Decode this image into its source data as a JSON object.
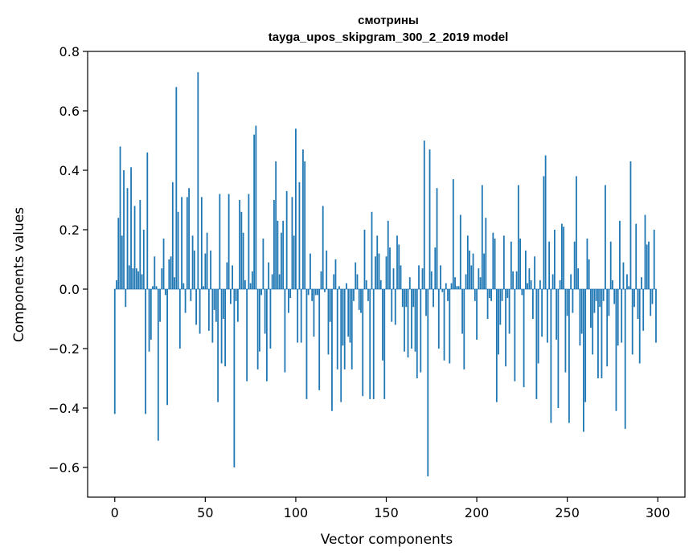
{
  "chart_data": {
    "type": "bar",
    "title_line1": "смотрины",
    "title_line2": "tayga_upos_skipgram_300_2_2019 model",
    "xlabel": "Vector components",
    "ylabel": "Components values",
    "xlim": [
      -15,
      315
    ],
    "ylim": [
      -0.7,
      0.8
    ],
    "xticks": [
      0,
      50,
      100,
      150,
      200,
      250,
      300
    ],
    "xtick_labels": [
      "0",
      "50",
      "100",
      "150",
      "200",
      "250",
      "300"
    ],
    "yticks": [
      -0.6,
      -0.4,
      -0.2,
      0.0,
      0.2,
      0.4,
      0.6,
      0.8
    ],
    "ytick_labels": [
      "−0.6",
      "−0.4",
      "−0.2",
      "0.0",
      "0.2",
      "0.4",
      "0.6",
      "0.8"
    ],
    "grid": false,
    "bar_color": "#1f77b4",
    "values": [
      -0.42,
      0.03,
      0.24,
      0.48,
      0.18,
      0.4,
      -0.06,
      0.34,
      0.08,
      0.41,
      0.07,
      0.28,
      0.07,
      0.06,
      0.3,
      0.05,
      0.2,
      -0.42,
      0.46,
      -0.21,
      -0.17,
      0.01,
      0.11,
      0.01,
      -0.51,
      -0.11,
      0.07,
      0.17,
      -0.02,
      -0.39,
      0.1,
      0.11,
      0.36,
      0.04,
      0.68,
      0.26,
      -0.2,
      0.31,
      0.02,
      -0.08,
      0.31,
      0.34,
      -0.04,
      0.18,
      0.13,
      -0.12,
      0.73,
      -0.15,
      0.31,
      0.01,
      0.12,
      0.19,
      -0.14,
      0.13,
      -0.18,
      -0.07,
      -0.11,
      -0.38,
      0.32,
      -0.25,
      -0.1,
      -0.26,
      0.09,
      0.32,
      -0.05,
      0.08,
      -0.6,
      -0.04,
      -0.11,
      0.3,
      0.26,
      0.19,
      0.03,
      -0.31,
      0.32,
      0.02,
      0.06,
      0.52,
      0.55,
      -0.27,
      -0.21,
      -0.02,
      0.17,
      -0.15,
      -0.31,
      0.09,
      -0.2,
      0.05,
      0.3,
      0.43,
      0.23,
      0.05,
      0.19,
      0.23,
      -0.28,
      0.33,
      -0.08,
      -0.03,
      0.31,
      0.18,
      0.54,
      -0.18,
      0.36,
      -0.18,
      0.47,
      0.43,
      -0.37,
      -0.02,
      0.12,
      -0.04,
      -0.16,
      -0.02,
      -0.02,
      -0.34,
      0.06,
      0.28,
      -0.01,
      0.13,
      -0.22,
      -0.11,
      -0.41,
      0.05,
      0.1,
      -0.27,
      0.01,
      -0.38,
      -0.19,
      -0.27,
      0.02,
      -0.16,
      -0.18,
      -0.27,
      -0.04,
      0.09,
      0.05,
      -0.07,
      -0.08,
      -0.36,
      0.2,
      0.03,
      -0.04,
      -0.37,
      0.26,
      -0.37,
      0.11,
      0.18,
      0.12,
      0.03,
      -0.24,
      -0.37,
      0.11,
      0.23,
      0.14,
      -0.11,
      0.07,
      -0.12,
      0.18,
      0.15,
      0.08,
      -0.06,
      -0.21,
      -0.06,
      -0.23,
      0.04,
      -0.2,
      -0.06,
      -0.21,
      -0.3,
      0.08,
      -0.28,
      0.07,
      0.5,
      -0.09,
      -0.63,
      0.47,
      0.06,
      -0.06,
      0.14,
      0.34,
      -0.2,
      0.08,
      -0.01,
      -0.24,
      0.02,
      -0.04,
      -0.25,
      0.02,
      0.37,
      0.04,
      0.01,
      0.01,
      0.25,
      -0.15,
      -0.27,
      0.05,
      0.18,
      0.13,
      0.08,
      0.12,
      -0.04,
      -0.17,
      0.07,
      0.04,
      0.35,
      0.12,
      0.24,
      -0.1,
      -0.03,
      -0.04,
      0.19,
      0.17,
      -0.38,
      -0.22,
      -0.12,
      -0.04,
      0.18,
      -0.26,
      -0.03,
      -0.15,
      0.16,
      0.06,
      -0.31,
      0.06,
      0.35,
      0.17,
      -0.02,
      -0.33,
      0.13,
      0.02,
      0.07,
      0.03,
      -0.1,
      0.11,
      -0.37,
      -0.25,
      0.03,
      -0.16,
      0.38,
      0.45,
      -0.18,
      0.16,
      -0.45,
      0.05,
      0.2,
      -0.17,
      -0.4,
      0.03,
      0.22,
      0.21,
      -0.28,
      -0.09,
      -0.45,
      0.05,
      -0.08,
      0.16,
      0.38,
      0.07,
      -0.19,
      -0.15,
      -0.48,
      -0.38,
      0.17,
      0.1,
      -0.13,
      -0.22,
      -0.08,
      -0.04,
      -0.3,
      -0.06,
      -0.3,
      -0.04,
      0.35,
      -0.26,
      -0.09,
      0.16,
      0.03,
      -0.05,
      -0.41,
      -0.19,
      0.23,
      -0.18,
      0.09,
      -0.47,
      0.05,
      0.01,
      0.43,
      -0.22,
      -0.06,
      0.22,
      -0.1,
      -0.25,
      0.04,
      -0.14,
      0.25,
      0.15,
      0.16,
      -0.09,
      -0.05,
      0.2,
      -0.18
    ]
  }
}
